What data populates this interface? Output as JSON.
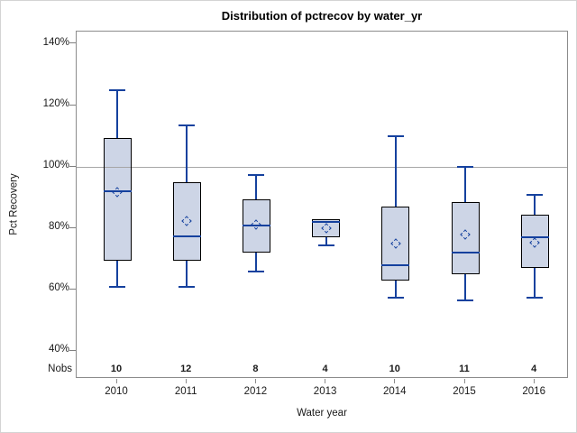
{
  "figure": {
    "title": "Distribution of pctrecov by water_yr",
    "y_axis": {
      "label": "Pct Recovery",
      "tick_labels": [
        "140%",
        "120%",
        "100%",
        "80%",
        "60%",
        "40%"
      ],
      "tick_values": [
        140,
        120,
        100,
        80,
        60,
        40
      ]
    },
    "x_axis": {
      "label": "Water year"
    },
    "nobs_label": "Nobs",
    "colors": {
      "box_fill": "#cdd5e6",
      "box_border": "#000000",
      "line_blue": "#15419e",
      "refline_gray": "#a6a6a6",
      "axis_border_gray": "#8c8c8c",
      "tick_gray": "#7f7f7f",
      "text": "#1a1a1a"
    }
  },
  "chart_data": {
    "type": "boxplot",
    "title": "Distribution of pctrecov by water_yr",
    "xlabel": "Water year",
    "ylabel": "Pct Recovery",
    "ylim": [
      31,
      144
    ],
    "yticks": [
      40,
      60,
      80,
      100,
      120,
      140
    ],
    "ytick_format": "percent",
    "reference_line": 100,
    "grid": false,
    "categories": [
      "2010",
      "2011",
      "2012",
      "2013",
      "2014",
      "2015",
      "2016"
    ],
    "nobs": [
      10,
      12,
      8,
      4,
      10,
      11,
      4
    ],
    "series": [
      {
        "year": "2010",
        "min": 61,
        "q1": 69.5,
        "median": 92,
        "q3": 109.5,
        "max": 125,
        "mean": 91.8
      },
      {
        "year": "2011",
        "min": 61,
        "q1": 69.5,
        "median": 77.5,
        "q3": 95,
        "max": 113.5,
        "mean": 82.5
      },
      {
        "year": "2012",
        "min": 66,
        "q1": 72,
        "median": 81,
        "q3": 89.5,
        "max": 97.5,
        "mean": 81.3
      },
      {
        "year": "2013",
        "min": 74.5,
        "q1": 77,
        "median": 82,
        "q3": 83,
        "max": 83,
        "mean": 80.2
      },
      {
        "year": "2014",
        "min": 57.5,
        "q1": 63,
        "median": 68,
        "q3": 87,
        "max": 110,
        "mean": 75.2
      },
      {
        "year": "2015",
        "min": 56.5,
        "q1": 65,
        "median": 72,
        "q3": 88.5,
        "max": 100,
        "mean": 78
      },
      {
        "year": "2016",
        "min": 57.5,
        "q1": 67,
        "median": 77,
        "q3": 84.5,
        "max": 91,
        "mean": 75.5
      }
    ]
  }
}
